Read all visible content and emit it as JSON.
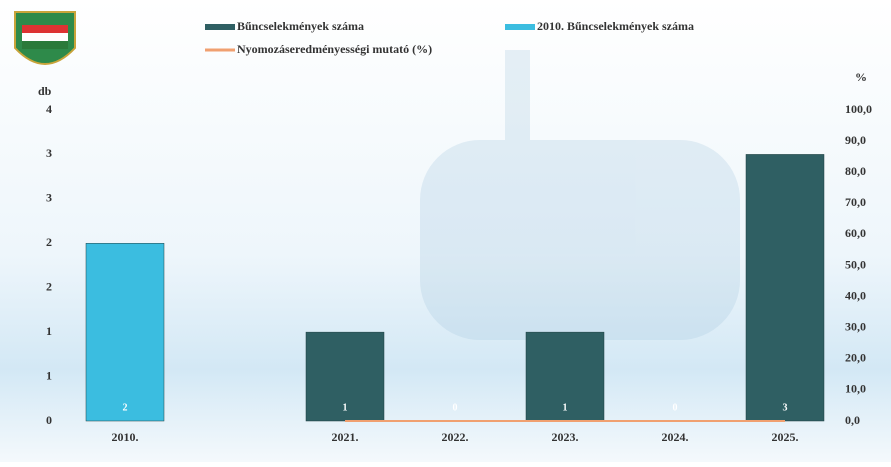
{
  "chart_data": {
    "type": "bar",
    "categories": [
      "2010.",
      null,
      "2021.",
      "2022.",
      "2023.",
      "2024.",
      "2025."
    ],
    "series": [
      {
        "name": "Bűncselekmények száma",
        "color": "#2f5f63",
        "values": [
          null,
          null,
          1,
          0,
          1,
          0,
          3
        ]
      },
      {
        "name": "2010. Bűncselekmények száma",
        "color": "#3bbde0",
        "values": [
          2,
          null,
          null,
          null,
          null,
          null,
          null
        ]
      },
      {
        "name": "Nyomozáseredményességi mutató (%)",
        "color": "#f0a070",
        "type": "line",
        "axis": "y2",
        "values": [
          null,
          null,
          0,
          0,
          0,
          0,
          0
        ]
      }
    ],
    "ylabel": "db",
    "y2label": "%",
    "ylim": [
      0,
      3.5
    ],
    "yticks": [
      {
        "value": 0,
        "label": "0"
      },
      {
        "value": 0.5,
        "label": "1"
      },
      {
        "value": 1,
        "label": "1"
      },
      {
        "value": 1.5,
        "label": "2"
      },
      {
        "value": 2,
        "label": "2"
      },
      {
        "value": 2.5,
        "label": "3"
      },
      {
        "value": 3,
        "label": "3"
      },
      {
        "value": 3.5,
        "label": "4"
      }
    ],
    "y2lim": [
      0,
      100
    ],
    "y2ticks": [
      {
        "value": 0,
        "label": "0,0"
      },
      {
        "value": 10,
        "label": "10,0"
      },
      {
        "value": 20,
        "label": "20,0"
      },
      {
        "value": 30,
        "label": "30,0"
      },
      {
        "value": 40,
        "label": "40,0"
      },
      {
        "value": 50,
        "label": "50,0"
      },
      {
        "value": 60,
        "label": "60,0"
      },
      {
        "value": 70,
        "label": "70,0"
      },
      {
        "value": 80,
        "label": "80,0"
      },
      {
        "value": 90,
        "label": "90,0"
      },
      {
        "value": 100,
        "label": "100,0"
      }
    ]
  }
}
